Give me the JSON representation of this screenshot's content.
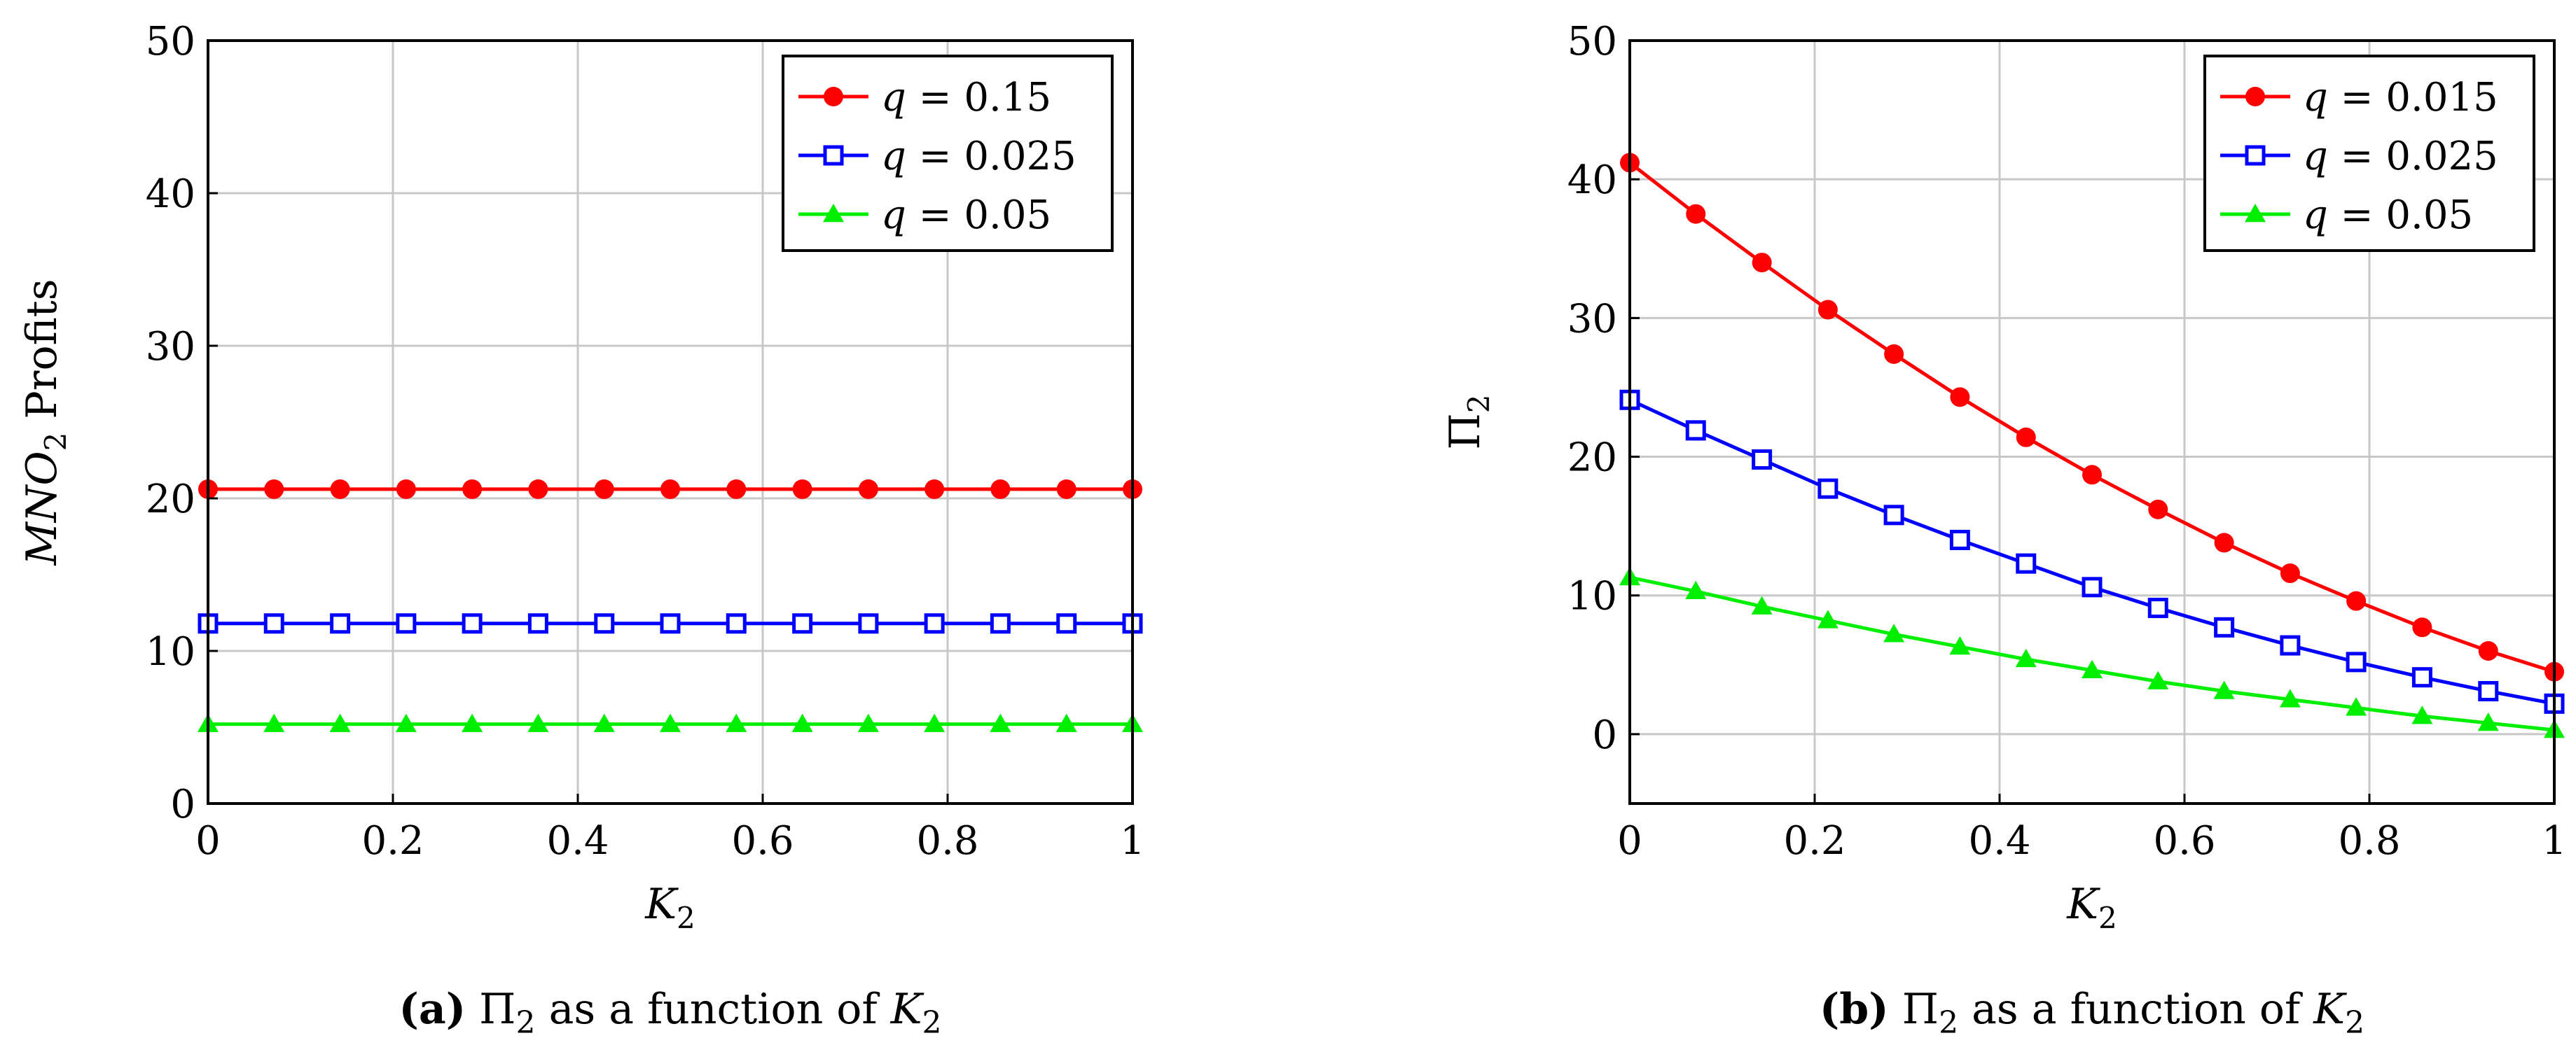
{
  "chart_data": [
    {
      "type": "line",
      "title": "",
      "xlabel": "K_2",
      "ylabel": "MNO_2 Profits",
      "xlim": [
        0,
        1
      ],
      "ylim": [
        0,
        50
      ],
      "xticks": [
        "0",
        "0.2",
        "0.4",
        "0.6",
        "0.8",
        "1"
      ],
      "yticks": [
        "0",
        "10",
        "20",
        "30",
        "40",
        "50"
      ],
      "grid": true,
      "legend_position": "top-right",
      "x": [
        0,
        0.0714,
        0.1429,
        0.2143,
        0.2857,
        0.3571,
        0.4286,
        0.5,
        0.5714,
        0.6429,
        0.7143,
        0.7857,
        0.8571,
        0.9286,
        1
      ],
      "series": [
        {
          "name": "q = 0.15",
          "color": "#ff0000",
          "marker": "circle",
          "values": [
            20.6,
            20.6,
            20.6,
            20.6,
            20.6,
            20.6,
            20.6,
            20.6,
            20.6,
            20.6,
            20.6,
            20.6,
            20.6,
            20.6,
            20.6
          ]
        },
        {
          "name": "q = 0.025",
          "color": "#0000ff",
          "marker": "square",
          "values": [
            11.8,
            11.8,
            11.8,
            11.8,
            11.8,
            11.8,
            11.8,
            11.8,
            11.8,
            11.8,
            11.8,
            11.8,
            11.8,
            11.8,
            11.8
          ]
        },
        {
          "name": "q = 0.05",
          "color": "#00ee00",
          "marker": "triangle",
          "values": [
            5.2,
            5.2,
            5.2,
            5.2,
            5.2,
            5.2,
            5.2,
            5.2,
            5.2,
            5.2,
            5.2,
            5.2,
            5.2,
            5.2,
            5.2
          ]
        }
      ],
      "caption_prefix": "(a)",
      "caption_text": "Π2 as a function of K2"
    },
    {
      "type": "line",
      "title": "",
      "xlabel": "K_2",
      "ylabel": "Π_2",
      "xlim": [
        0,
        1
      ],
      "ylim": [
        -5,
        50
      ],
      "xticks": [
        "0",
        "0.2",
        "0.4",
        "0.6",
        "0.8",
        "1"
      ],
      "yticks": [
        "0",
        "10",
        "20",
        "30",
        "40",
        "50"
      ],
      "grid": true,
      "legend_position": "top-right",
      "x": [
        0,
        0.0714,
        0.1429,
        0.2143,
        0.2857,
        0.3571,
        0.4286,
        0.5,
        0.5714,
        0.6429,
        0.7143,
        0.7857,
        0.8571,
        0.9286,
        1
      ],
      "series": [
        {
          "name": "q = 0.015",
          "color": "#ff0000",
          "marker": "circle",
          "values": [
            41.2,
            37.5,
            34.0,
            30.6,
            27.4,
            24.3,
            21.4,
            18.7,
            16.2,
            13.8,
            11.6,
            9.6,
            7.7,
            6.0,
            4.5
          ]
        },
        {
          "name": "q = 0.025",
          "color": "#0000ff",
          "marker": "square",
          "values": [
            24.1,
            21.9,
            19.8,
            17.7,
            15.8,
            14.0,
            12.3,
            10.6,
            9.1,
            7.7,
            6.4,
            5.2,
            4.1,
            3.1,
            2.2
          ]
        },
        {
          "name": "q = 0.05",
          "color": "#00ee00",
          "marker": "triangle",
          "values": [
            11.3,
            10.3,
            9.2,
            8.2,
            7.2,
            6.3,
            5.4,
            4.6,
            3.8,
            3.1,
            2.5,
            1.9,
            1.3,
            0.8,
            0.3
          ]
        }
      ],
      "caption_prefix": "(b)",
      "caption_text": "Π2 as a function of K2"
    }
  ]
}
